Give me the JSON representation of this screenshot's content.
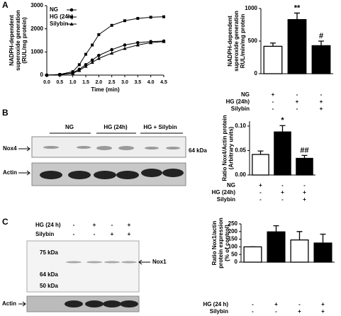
{
  "figure": {
    "panels": [
      "A",
      "B",
      "C"
    ],
    "blot_b": {
      "groups": [
        "NG",
        "HG (24h)",
        "HG + Silybin"
      ],
      "rows": [
        "Nox4",
        "Actin"
      ],
      "marker": "64 kDa"
    },
    "blot_c": {
      "treatments": [
        {
          "name": "HG (24 h)",
          "signs": [
            "-",
            "+",
            "-",
            "+"
          ]
        },
        {
          "name": "Silybin",
          "signs": [
            "-",
            "-",
            "+",
            "+"
          ]
        }
      ],
      "markers": [
        "75 kDa",
        "64 kDa",
        "50 kDa"
      ],
      "band": "Nox1",
      "loading": "Actin"
    }
  },
  "chart_data": [
    {
      "type": "line",
      "xlabel": "Time (min)",
      "ylabel": [
        "NADPH-dependent",
        "superoxide generation",
        "(RUL/mg protein)"
      ],
      "x": [
        0,
        0.5,
        1.0,
        1.25,
        1.5,
        1.75,
        2.0,
        2.5,
        3.0,
        3.5,
        4.0,
        4.5
      ],
      "series": [
        {
          "name": "NG",
          "marker": "circle",
          "color": "#000000",
          "values": [
            0,
            20,
            100,
            250,
            450,
            650,
            850,
            1100,
            1300,
            1400,
            1450,
            1470
          ]
        },
        {
          "name": "HG (24h)",
          "marker": "square",
          "color": "#000000",
          "values": [
            0,
            30,
            150,
            450,
            900,
            1300,
            1750,
            2150,
            2350,
            2450,
            2500,
            2520
          ]
        },
        {
          "name": "Silybin",
          "marker": "triangle",
          "color": "#000000",
          "values": [
            0,
            15,
            80,
            200,
            380,
            550,
            720,
            950,
            1150,
            1300,
            1400,
            1450
          ]
        }
      ],
      "xlim": [
        0,
        4.5
      ],
      "xticks": [
        {
          "value": 0,
          "label": "0.0"
        },
        0.5,
        {
          "value": 1,
          "label": "1.0"
        },
        1.5,
        {
          "value": 2,
          "label": "2.0"
        },
        2.5,
        {
          "value": 3,
          "label": "3.0"
        },
        3.5,
        {
          "value": 4,
          "label": "4.0"
        },
        4.5
      ],
      "ylim": [
        0,
        3000
      ],
      "yticks": [
        0,
        1000,
        2000,
        3000
      ],
      "legend": "top-left"
    },
    {
      "type": "bar",
      "ylabel": [
        "NADPH-dependent",
        "superoxide generation",
        "RUL/min/mg protein"
      ],
      "values": [
        420,
        830,
        430
      ],
      "errors": [
        50,
        100,
        70
      ],
      "colors": [
        "#ffffff",
        "#000000",
        "#000000"
      ],
      "annotations": [
        null,
        "**",
        "#"
      ],
      "treatments": [
        {
          "name": "NG",
          "signs": [
            "+",
            "-",
            "-"
          ]
        },
        {
          "name": "HG (24h)",
          "signs": [
            "-",
            "+",
            "+"
          ]
        },
        {
          "name": "Silybin",
          "signs": [
            "-",
            "-",
            "+"
          ]
        }
      ],
      "ylim": [
        0,
        1000
      ],
      "yticks": [
        0,
        500,
        1000
      ]
    },
    {
      "type": "bar",
      "ylabel": [
        "Ratio Nox4/Actin protein",
        "(Arbitrary units)"
      ],
      "values": [
        0.042,
        0.088,
        0.034
      ],
      "errors": [
        0.007,
        0.013,
        0.006
      ],
      "colors": [
        "#ffffff",
        "#000000",
        "#000000"
      ],
      "annotations": [
        null,
        "*",
        "##"
      ],
      "treatments": [
        {
          "name": "NG",
          "signs": [
            "+",
            "-",
            "-"
          ]
        },
        {
          "name": "HG (24h)",
          "signs": [
            "-",
            "+",
            "+"
          ]
        },
        {
          "name": "Silybin",
          "signs": [
            "-",
            "-",
            "+"
          ]
        }
      ],
      "ylim": [
        0,
        0.11
      ],
      "yticks": [
        {
          "value": 0,
          "label": "0.00"
        },
        0.05,
        {
          "value": 0.1,
          "label": "0.10"
        }
      ]
    },
    {
      "type": "bar",
      "ylabel": [
        "Ratio Nox1/actin",
        "protein expression",
        "(% of control)"
      ],
      "values": [
        100,
        198,
        145,
        125
      ],
      "errors": [
        0,
        40,
        55,
        58
      ],
      "colors": [
        "#ffffff",
        "#000000",
        "#ffffff",
        "#000000"
      ],
      "treatments": [
        {
          "name": "HG (24 h)",
          "signs": [
            "-",
            "+",
            "-",
            "+"
          ]
        },
        {
          "name": "Silybin",
          "signs": [
            "-",
            "-",
            "+",
            "+"
          ]
        }
      ],
      "ylim": [
        0,
        250
      ],
      "yticks": [
        0,
        50,
        100,
        150,
        200,
        250
      ]
    }
  ]
}
